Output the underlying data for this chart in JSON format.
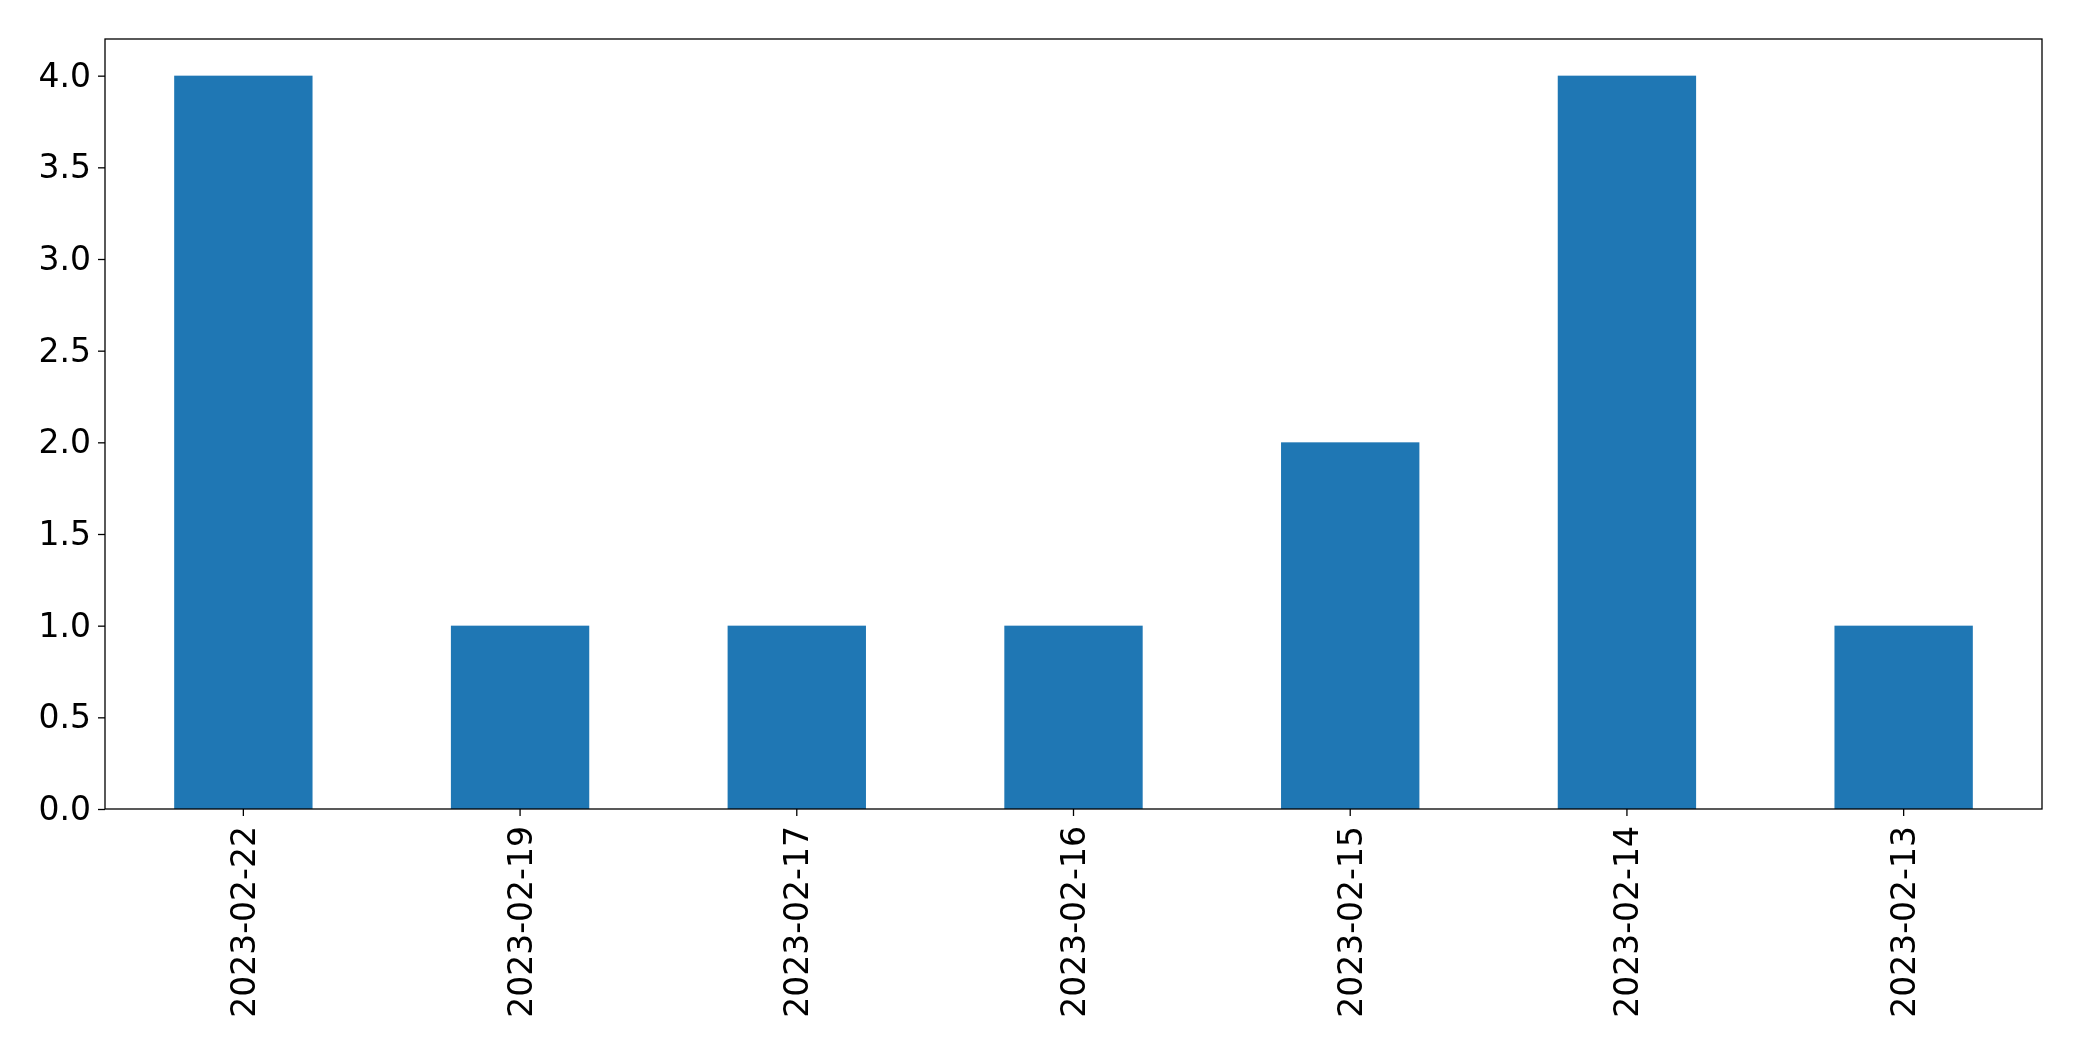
{
  "chart_data": {
    "type": "bar",
    "categories": [
      "2023-02-22",
      "2023-02-19",
      "2023-02-17",
      "2023-02-16",
      "2023-02-15",
      "2023-02-14",
      "2023-02-13"
    ],
    "values": [
      4,
      1,
      1,
      1,
      2,
      4,
      1
    ],
    "color": "#1f77b4",
    "ylim": [
      0,
      4.2
    ],
    "yticks": [
      {
        "value": 0,
        "label": "0.0"
      },
      0.5,
      {
        "value": 1,
        "label": "1.0"
      },
      1.5,
      {
        "value": 2,
        "label": "2.0"
      },
      2.5,
      {
        "value": 3,
        "label": "3.0"
      },
      3.5,
      {
        "value": 4,
        "label": "4.0"
      }
    ],
    "grid": false,
    "legend": false
  }
}
